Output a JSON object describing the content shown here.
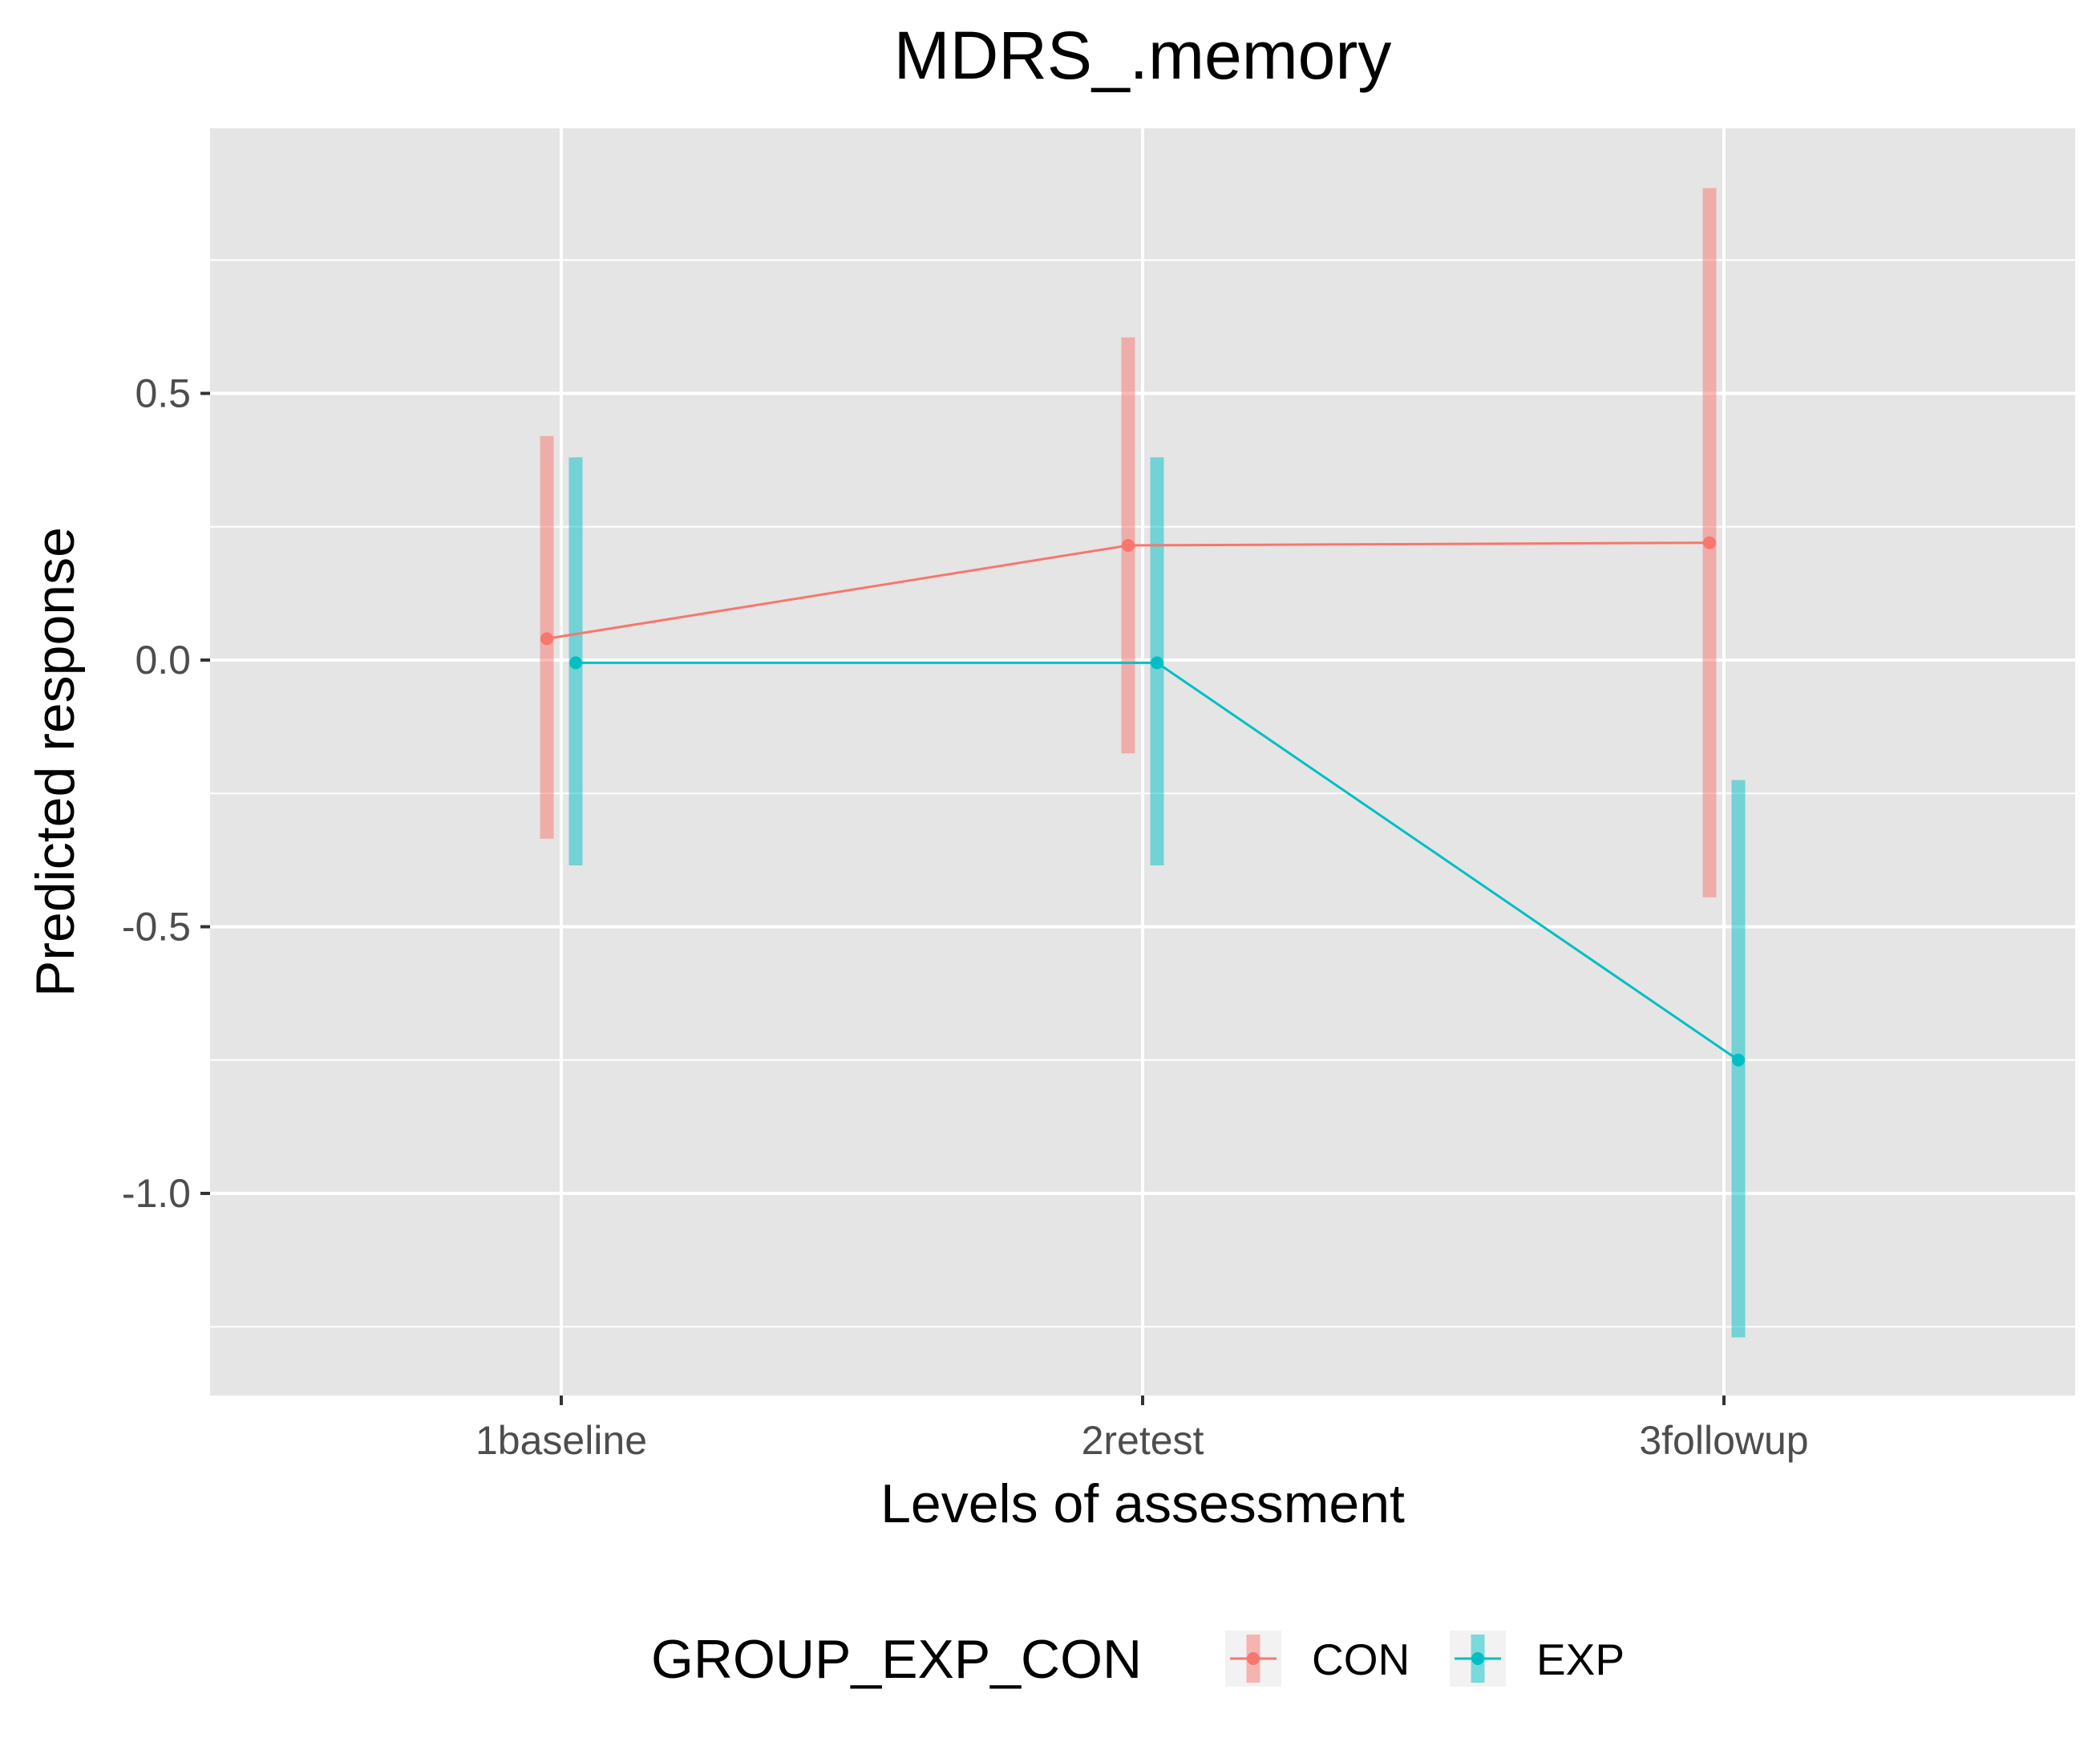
{
  "chart_data": {
    "type": "line",
    "title": "MDRS_.memory",
    "xlabel": "Levels of assessment",
    "ylabel": "Predicted response",
    "categories": [
      "1baseline",
      "2retest",
      "3followup"
    ],
    "yticks": [
      "0.5",
      "0.0",
      "-0.5",
      "-1.0"
    ],
    "ytick_values": [
      0.5,
      0.0,
      -0.5,
      -1.0
    ],
    "ylim": [
      -1.38,
      1.0
    ],
    "grid": true,
    "error_bars": true,
    "legend": {
      "title": "GROUP_EXP_CON",
      "position": "bottom"
    },
    "series": [
      {
        "name": "CON",
        "color": "#F8766D",
        "values": [
          0.04,
          0.215,
          0.22
        ],
        "lower": [
          -0.335,
          -0.175,
          -0.445
        ],
        "upper": [
          0.42,
          0.605,
          0.885
        ]
      },
      {
        "name": "EXP",
        "color": "#00BFC4",
        "values": [
          -0.005,
          -0.005,
          -0.75
        ],
        "lower": [
          -0.385,
          -0.385,
          -1.27
        ],
        "upper": [
          0.38,
          0.38,
          -0.225
        ]
      }
    ]
  }
}
